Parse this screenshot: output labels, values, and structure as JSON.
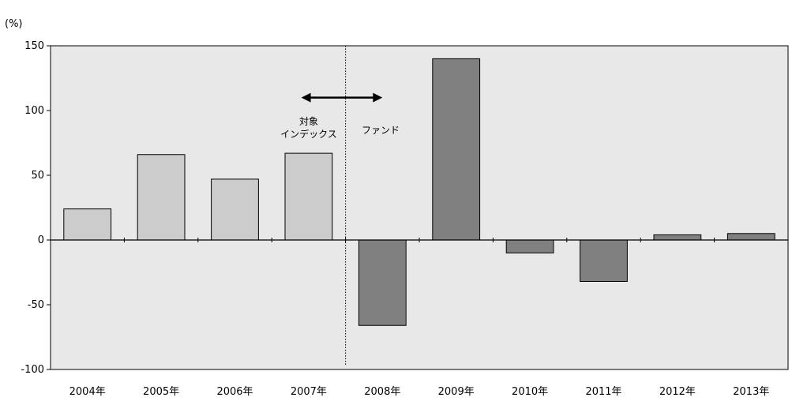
{
  "chart_data": {
    "type": "bar",
    "unit_label": "(%)",
    "categories": [
      "2004年",
      "2005年",
      "2006年",
      "2007年",
      "2008年",
      "2009年",
      "2010年",
      "2011年",
      "2012年",
      "2013年"
    ],
    "values": [
      24,
      66,
      47,
      67,
      -66,
      140,
      -10,
      -32,
      4,
      5
    ],
    "bar_colors": [
      "#cccccc",
      "#cccccc",
      "#cccccc",
      "#cccccc",
      "#808080",
      "#808080",
      "#808080",
      "#808080",
      "#808080",
      "#808080"
    ],
    "ylim": [
      -100,
      150
    ],
    "yticks": [
      150,
      100,
      50,
      0,
      -50,
      -100
    ],
    "ytick_labels": [
      "150",
      "100",
      "50",
      "0",
      "-50",
      "-100"
    ],
    "plot_background": "#e8e8e8",
    "grid": false,
    "divider_after_category_index": 3,
    "annotations": {
      "left_line1": "対象",
      "left_line2": "インデックス",
      "right": "ファンド"
    }
  }
}
